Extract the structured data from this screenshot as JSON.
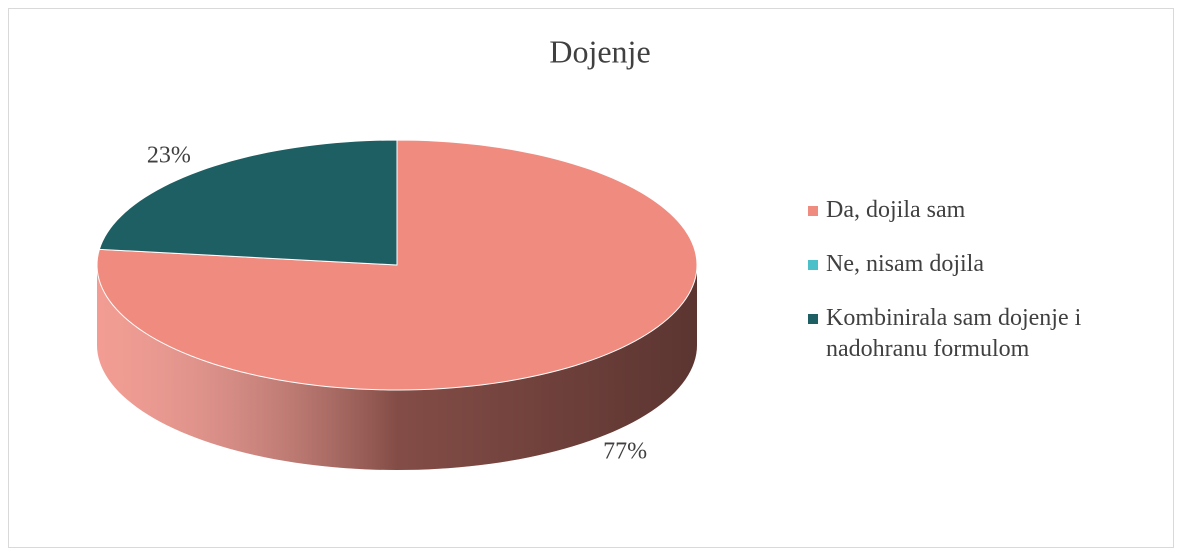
{
  "chart_data": {
    "type": "pie",
    "title": "Dojenje",
    "categories": [
      "Da, dojila sam",
      "Ne, nisam dojila",
      "Kombinirala sam dojenje i nadohranu formulom"
    ],
    "values": [
      77,
      0,
      23
    ],
    "value_labels": [
      "77%",
      null,
      "23%"
    ],
    "colors": [
      "#f08b80",
      "#4bc0c8",
      "#1e5f64"
    ],
    "legend": "right"
  }
}
